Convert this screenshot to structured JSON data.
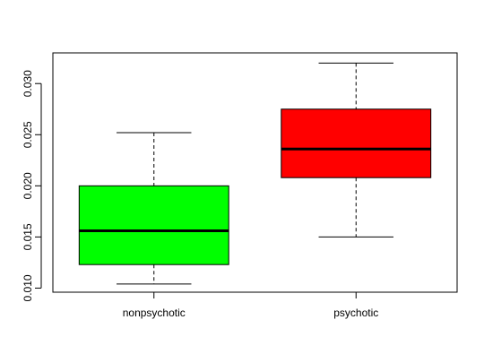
{
  "chart_data": {
    "type": "box",
    "title": "",
    "xlabel": "",
    "ylabel": "",
    "categories": [
      "nonpsychotic",
      "psychotic"
    ],
    "boxes": [
      {
        "name": "nonpsychotic",
        "min": 0.0104,
        "q1": 0.0123,
        "median": 0.0156,
        "q3": 0.02,
        "max": 0.0252,
        "color": "#00ff00"
      },
      {
        "name": "psychotic",
        "min": 0.015,
        "q1": 0.0208,
        "median": 0.0236,
        "q3": 0.0275,
        "max": 0.032,
        "color": "#ff0000"
      }
    ],
    "ylim": [
      0.0096,
      0.033
    ],
    "yticks": [
      0.01,
      0.015,
      0.02,
      0.025,
      0.03
    ],
    "ytick_labels": [
      "0.010",
      "0.015",
      "0.020",
      "0.025",
      "0.030"
    ],
    "grid": false,
    "legend": "none"
  }
}
